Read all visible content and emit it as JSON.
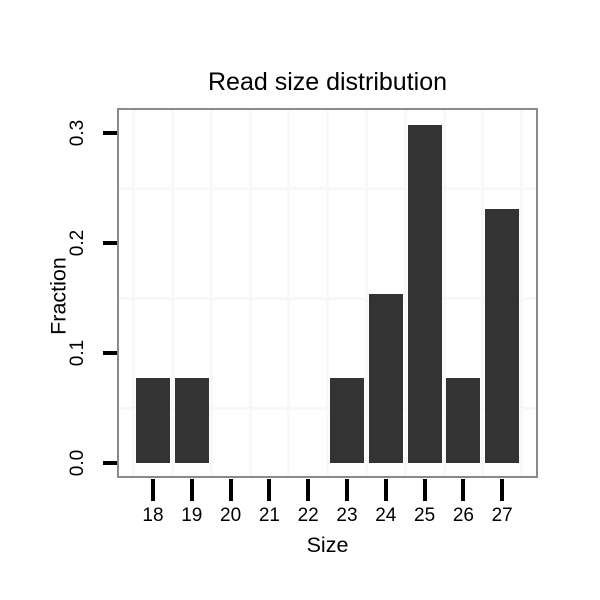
{
  "figure": {
    "title": "Read size distribution",
    "x_axis_label": "Size",
    "y_axis_label": "Fraction"
  },
  "chart_data": {
    "type": "bar",
    "title": "Read size distribution",
    "xlabel": "Size",
    "ylabel": "Fraction",
    "categories": [
      18,
      19,
      20,
      21,
      22,
      23,
      24,
      25,
      26,
      27
    ],
    "values": [
      0.0769,
      0.0769,
      0,
      0,
      0,
      0.0769,
      0.1538,
      0.3077,
      0.0769,
      0.2308
    ],
    "x_tick_labels": [
      "18",
      "19",
      "20",
      "21",
      "22",
      "23",
      "24",
      "25",
      "26",
      "27"
    ],
    "yticks": [
      0.0,
      0.1,
      0.2,
      0.3
    ],
    "ytick_labels": [
      "0.0",
      "0.1",
      "0.2",
      "0.3"
    ],
    "ylim": [
      -0.0154,
      0.3231
    ],
    "xlim": [
      17.05,
      27.95
    ],
    "grid": "minor-only",
    "grid_minor_y": [
      0.05,
      0.15,
      0.25
    ],
    "legend_position": "none",
    "colors": {
      "bar": "#333333",
      "panel_border": "#8a8a8a",
      "grid_minor": "#f8f8f8",
      "tick": "#000000",
      "text": "#000000",
      "background": "#ffffff"
    }
  }
}
